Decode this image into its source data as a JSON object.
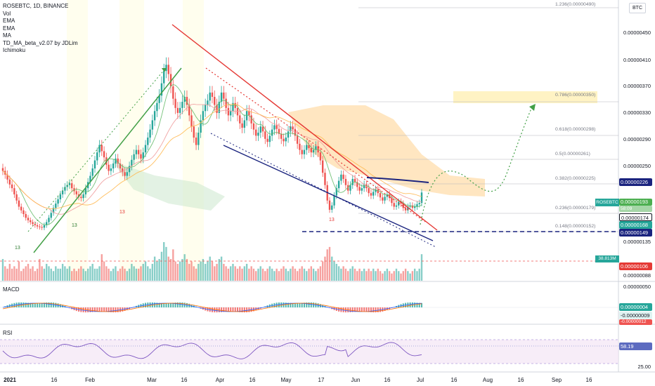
{
  "legend": {
    "symbol": "ROSEBTC, 1D, BINANCE",
    "items": [
      "Vol",
      "EMA",
      "EMA",
      "MA",
      "TD_MA_beta_v2.07 by JDLim",
      "Ichimoku"
    ]
  },
  "currency_toggle": "BTC",
  "price_axis": {
    "top_label": "1.236(0.00000490)",
    "labels": [
      "0.00000450",
      "0.00000410",
      "0.00000370",
      "0.00000330",
      "0.00000290",
      "0.00000250",
      "0.00000135",
      "0.00000088",
      "0.00000050"
    ]
  },
  "badges": {
    "p226": "0.00000226",
    "current": "0.00000193",
    "current_sub": "58:09",
    "p174": "0.00000174",
    "p168": "0.00000168",
    "p149": "0.00000149",
    "vol": "38.813M",
    "p106": "0.00000106",
    "macd1": "0.00000004",
    "macd2": "-0.00000009",
    "macd3": "-0.00000012",
    "rsi": "58.19"
  },
  "symbol_tag": "ROSEBTC",
  "fib_levels": [
    "0.786(0.00000350)",
    "0.618(0.00000298)",
    "0.5(0.00000261)",
    "0.382(0.00000225)",
    "0.236(0.00000179)",
    "0.148(0.00000152)"
  ],
  "td_marks": [
    "13",
    "13",
    "13",
    "13"
  ],
  "macd_pane": {
    "title": "MACD"
  },
  "rsi_pane": {
    "title": "RSI",
    "axis_label": "25.00"
  },
  "time_axis": [
    "2021",
    "16",
    "Feb",
    "Mar",
    "16",
    "Apr",
    "16",
    "May",
    "17",
    "Jun",
    "16",
    "Jul",
    "16",
    "Aug",
    "16",
    "Sep",
    "16"
  ],
  "colors": {
    "up": "#26a69a",
    "down": "#ef5350",
    "upper_trend": "#e53935",
    "lower_trend": "#1a237e",
    "green_arrow": "#43a047",
    "rsi_line": "#7e57c2",
    "fib_zone": "#fff3c4",
    "cloud": "#ffe0b2"
  },
  "price_scale": {
    "min": 5e-07,
    "max": 5.05e-06
  },
  "series": {
    "close": [
      2.28e-06,
      2.22e-06,
      2.14e-06,
      2.06e-06,
      2e-06,
      1.9e-06,
      1.8e-06,
      1.7e-06,
      1.64e-06,
      1.58e-06,
      1.52e-06,
      1.48e-06,
      1.45e-06,
      1.42e-06,
      1.4e-06,
      1.38e-06,
      1.37e-06,
      1.36e-06,
      1.4e-06,
      1.45e-06,
      1.52e-06,
      1.6e-06,
      1.68e-06,
      1.75e-06,
      1.82e-06,
      1.9e-06,
      1.96e-06,
      2.02e-06,
      2.05e-06,
      2.08e-06,
      2e-06,
      1.95e-06,
      1.9e-06,
      1.86e-06,
      1.84e-06,
      1.9e-06,
      2e-06,
      2.1e-06,
      2.2e-06,
      2.32e-06,
      2.45e-06,
      2.58e-06,
      2.7e-06,
      2.6e-06,
      2.5e-06,
      2.38e-06,
      2.28e-06,
      2.32e-06,
      2.4e-06,
      2.48e-06,
      2.4e-06,
      2.32e-06,
      2.26e-06,
      2.2e-06,
      2.26e-06,
      2.36e-06,
      2.46e-06,
      2.55e-06,
      2.62e-06,
      2.55e-06,
      2.48e-06,
      2.58e-06,
      2.7e-06,
      2.82e-06,
      2.95e-06,
      3.1e-06,
      3.25e-06,
      3.38e-06,
      3.5e-06,
      3.7e-06,
      3.9e-06,
      4e-06,
      3.85e-06,
      3.65e-06,
      3.45e-06,
      3.3e-06,
      3.22e-06,
      3.3e-06,
      3.4e-06,
      3.48e-06,
      3.35e-06,
      3.18e-06,
      3e-06,
      2.82e-06,
      2.7e-06,
      2.9e-06,
      3.1e-06,
      3.25e-06,
      3.35e-06,
      3.42e-06,
      3.55e-06,
      3.48e-06,
      3.35e-06,
      3.22e-06,
      3.4e-06,
      3.55e-06,
      3.45e-06,
      3.3e-06,
      3.18e-06,
      3.25e-06,
      3.38e-06,
      3.3e-06,
      3.18e-06,
      3.05e-06,
      2.98e-06,
      3.1e-06,
      3.25e-06,
      3.18e-06,
      3.05e-06,
      2.95e-06,
      2.85e-06,
      2.9e-06,
      3e-06,
      2.92e-06,
      2.8e-06,
      2.75e-06,
      2.85e-06,
      2.95e-06,
      3.02e-06,
      2.96e-06,
      2.88e-06,
      2.8e-06,
      2.76e-06,
      2.82e-06,
      2.92e-06,
      3e-06,
      2.96e-06,
      2.85e-06,
      2.72e-06,
      2.62e-06,
      2.55e-06,
      2.62e-06,
      2.7e-06,
      2.65e-06,
      2.58e-06,
      2.62e-06,
      2.68e-06,
      2.58e-06,
      2.45e-06,
      2.25e-06,
      2.05e-06,
      1.8e-06,
      1.65e-06,
      1.72e-06,
      1.88e-06,
      2e-06,
      2.12e-06,
      2.22e-06,
      2.15e-06,
      2.05e-06,
      1.96e-06,
      2.05e-06,
      2.15e-06,
      2.1e-06,
      2.02e-06,
      1.96e-06,
      2e-06,
      2.06e-06,
      2e-06,
      1.92e-06,
      1.88e-06,
      1.94e-06,
      1.98e-06,
      1.92e-06,
      1.85e-06,
      1.8e-06,
      1.86e-06,
      1.9e-06,
      1.84e-06,
      1.76e-06,
      1.7e-06,
      1.72e-06,
      1.78e-06,
      1.75e-06,
      1.68e-06,
      1.64e-06,
      1.7e-06,
      1.72e-06,
      1.68e-06,
      1.7e-06,
      1.74e-06,
      1.76e-06,
      1.93e-06
    ],
    "volume": [
      0.9,
      0.6,
      0.5,
      0.7,
      0.5,
      0.6,
      0.5,
      0.8,
      0.4,
      0.5,
      0.6,
      0.7,
      0.5,
      0.6,
      0.4,
      0.5,
      0.9,
      0.6,
      0.5,
      0.7,
      0.6,
      0.5,
      0.4,
      0.6,
      0.5,
      0.5,
      0.7,
      0.6,
      0.5,
      0.6,
      0.4,
      0.5,
      0.4,
      0.5,
      0.6,
      0.5,
      0.4,
      0.5,
      0.6,
      0.7,
      0.5,
      0.5,
      0.6,
      1.1,
      0.8,
      0.6,
      0.5,
      0.4,
      0.5,
      0.6,
      0.4,
      0.5,
      0.6,
      0.5,
      0.4,
      0.5,
      0.7,
      0.6,
      0.5,
      0.5,
      0.6,
      0.7,
      0.8,
      0.6,
      0.5,
      0.7,
      1.0,
      0.8,
      0.9,
      1.2,
      1.6,
      1.4,
      1.0,
      0.9,
      1.3,
      0.8,
      0.7,
      0.8,
      0.9,
      1.1,
      0.9,
      0.7,
      0.8,
      0.6,
      0.5,
      0.7,
      0.8,
      0.9,
      0.7,
      0.8,
      1.0,
      0.8,
      0.6,
      0.7,
      0.9,
      1.0,
      0.7,
      0.6,
      0.5,
      0.6,
      0.7,
      0.6,
      0.5,
      0.6,
      0.5,
      0.6,
      0.7,
      0.5,
      0.6,
      0.5,
      0.4,
      0.5,
      0.6,
      0.5,
      0.4,
      0.5,
      0.6,
      0.5,
      0.4,
      0.5,
      0.4,
      0.5,
      0.6,
      0.5,
      0.4,
      0.5,
      0.6,
      0.5,
      0.4,
      0.5,
      0.6,
      0.5,
      0.4,
      0.5,
      0.6,
      0.5,
      0.4,
      0.5,
      0.6,
      0.8,
      1.0,
      1.3,
      1.4,
      1.0,
      0.8,
      0.7,
      0.6,
      0.5,
      0.6,
      0.5,
      0.4,
      0.5,
      0.6,
      0.5,
      0.4,
      0.5,
      0.4,
      0.5,
      0.4,
      0.5,
      0.4,
      0.5,
      0.4,
      0.5,
      0.4,
      0.3,
      0.4,
      0.5,
      0.4,
      0.3,
      0.4,
      0.5,
      0.4,
      0.3,
      0.4,
      0.5,
      0.4,
      0.3,
      0.4,
      0.5,
      0.4,
      0.5,
      1.1
    ]
  }
}
